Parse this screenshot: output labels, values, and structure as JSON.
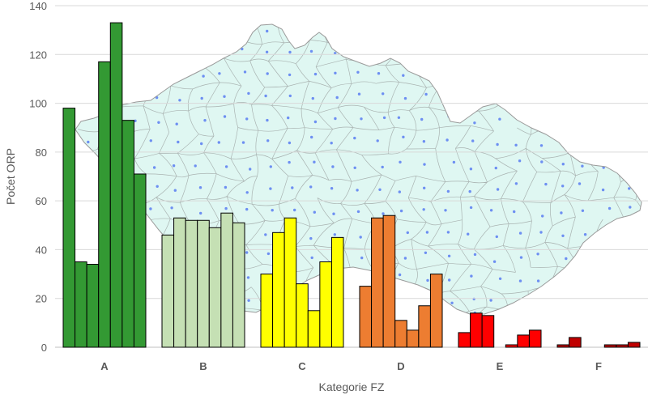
{
  "chart_data": {
    "type": "bar",
    "categories": [
      "A",
      "B",
      "C",
      "D",
      "E",
      "F"
    ],
    "category_colors": [
      "#339933",
      "#c5e0b4",
      "#ffff00",
      "#ed7d31",
      "#ff0000",
      "#c00000"
    ],
    "series": [
      {
        "values": [
          98,
          46,
          30,
          25,
          6,
          1
        ]
      },
      {
        "values": [
          35,
          53,
          47,
          53,
          14,
          4
        ]
      },
      {
        "values": [
          34,
          52,
          53,
          54,
          13,
          0
        ]
      },
      {
        "values": [
          117,
          52,
          26,
          11,
          0,
          0
        ]
      },
      {
        "values": [
          133,
          49,
          15,
          7,
          1,
          1
        ]
      },
      {
        "values": [
          93,
          55,
          35,
          17,
          5,
          1
        ]
      },
      {
        "values": [
          71,
          51,
          45,
          30,
          7,
          2
        ]
      }
    ],
    "xlabel": "Kategorie FZ",
    "ylabel": "Počet ORP",
    "ylim": [
      0,
      140
    ],
    "yticks": [
      0,
      20,
      40,
      60,
      80,
      100,
      120,
      140
    ],
    "grid": true
  }
}
